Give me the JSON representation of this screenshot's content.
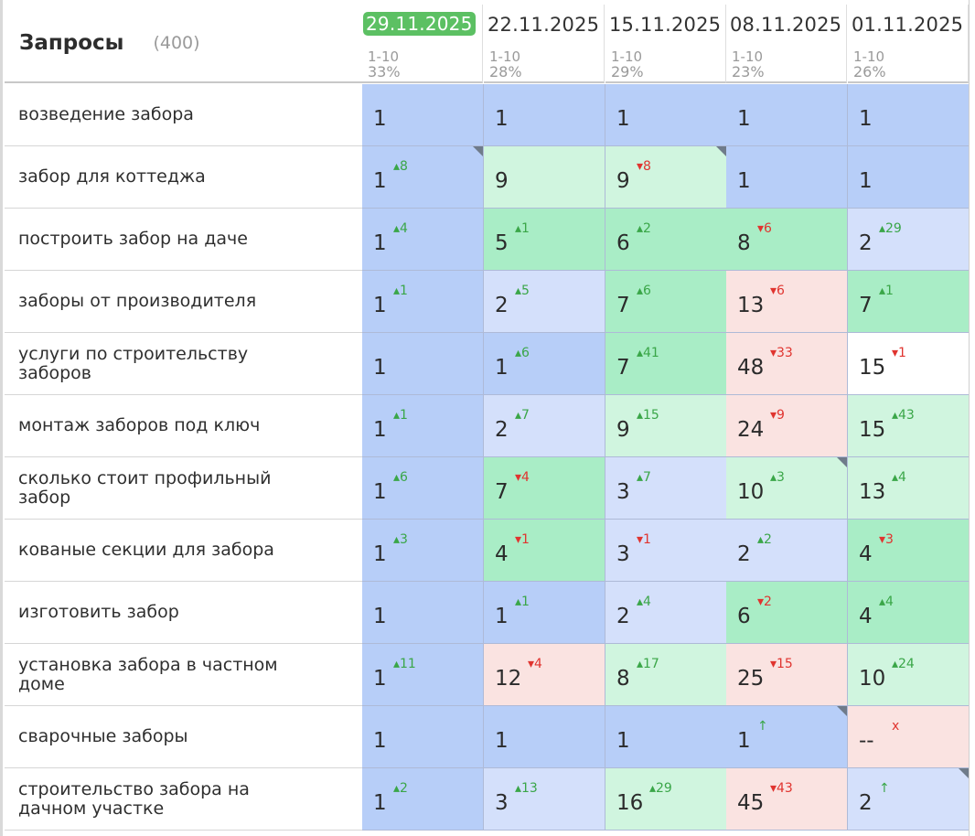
{
  "header": {
    "title": "Запросы",
    "count": "(400)"
  },
  "dates": [
    {
      "date": "29.11.2025",
      "range": "1-10",
      "pct": "33%",
      "active": true
    },
    {
      "date": "22.11.2025",
      "range": "1-10",
      "pct": "28%",
      "active": false
    },
    {
      "date": "15.11.2025",
      "range": "1-10",
      "pct": "29%",
      "active": false
    },
    {
      "date": "08.11.2025",
      "range": "1-10",
      "pct": "23%",
      "active": false
    },
    {
      "date": "01.11.2025",
      "range": "1-10",
      "pct": "26%",
      "active": false
    }
  ],
  "colors": {
    "top": "#b7cef8",
    "good": "#a9edc6",
    "ok": "#d0f5df",
    "mid": "#d4e0fb",
    "bad": "#fae3e1",
    "none": "#ffffff",
    "up": "#3aa648",
    "down": "#e0342f",
    "badge": "#5cc063"
  },
  "rows": [
    {
      "keyword": "возведение забора",
      "cells": [
        {
          "pos": "1",
          "delta": "",
          "dir": "",
          "bg": "top",
          "corner": false
        },
        {
          "pos": "1",
          "delta": "",
          "dir": "",
          "bg": "top",
          "corner": false
        },
        {
          "pos": "1",
          "delta": "",
          "dir": "",
          "bg": "top",
          "corner": false
        },
        {
          "pos": "1",
          "delta": "",
          "dir": "",
          "bg": "top",
          "corner": false
        },
        {
          "pos": "1",
          "delta": "",
          "dir": "",
          "bg": "top",
          "corner": false
        }
      ]
    },
    {
      "keyword": "забор для коттеджа",
      "cells": [
        {
          "pos": "1",
          "delta": "▴8",
          "dir": "up",
          "bg": "top",
          "corner": true
        },
        {
          "pos": "9",
          "delta": "",
          "dir": "",
          "bg": "ok",
          "corner": false
        },
        {
          "pos": "9",
          "delta": "▾8",
          "dir": "down",
          "bg": "ok",
          "corner": true
        },
        {
          "pos": "1",
          "delta": "",
          "dir": "",
          "bg": "top",
          "corner": false
        },
        {
          "pos": "1",
          "delta": "",
          "dir": "",
          "bg": "top",
          "corner": false
        }
      ]
    },
    {
      "keyword": "построить забор на даче",
      "cells": [
        {
          "pos": "1",
          "delta": "▴4",
          "dir": "up",
          "bg": "top",
          "corner": false
        },
        {
          "pos": "5",
          "delta": "▴1",
          "dir": "up",
          "bg": "good",
          "corner": false
        },
        {
          "pos": "6",
          "delta": "▴2",
          "dir": "up",
          "bg": "good",
          "corner": false
        },
        {
          "pos": "8",
          "delta": "▾6",
          "dir": "down",
          "bg": "good",
          "corner": false
        },
        {
          "pos": "2",
          "delta": "▴29",
          "dir": "up",
          "bg": "mid",
          "corner": false
        }
      ]
    },
    {
      "keyword": "заборы от производителя",
      "cells": [
        {
          "pos": "1",
          "delta": "▴1",
          "dir": "up",
          "bg": "top",
          "corner": false
        },
        {
          "pos": "2",
          "delta": "▴5",
          "dir": "up",
          "bg": "mid",
          "corner": false
        },
        {
          "pos": "7",
          "delta": "▴6",
          "dir": "up",
          "bg": "good",
          "corner": false
        },
        {
          "pos": "13",
          "delta": "▾6",
          "dir": "down",
          "bg": "bad",
          "corner": false
        },
        {
          "pos": "7",
          "delta": "▴1",
          "dir": "up",
          "bg": "good",
          "corner": false
        }
      ]
    },
    {
      "keyword": "услуги по строительству заборов",
      "cells": [
        {
          "pos": "1",
          "delta": "",
          "dir": "",
          "bg": "top",
          "corner": false
        },
        {
          "pos": "1",
          "delta": "▴6",
          "dir": "up",
          "bg": "top",
          "corner": false
        },
        {
          "pos": "7",
          "delta": "▴41",
          "dir": "up",
          "bg": "good",
          "corner": false
        },
        {
          "pos": "48",
          "delta": "▾33",
          "dir": "down",
          "bg": "bad",
          "corner": false
        },
        {
          "pos": "15",
          "delta": "▾1",
          "dir": "down",
          "bg": "none",
          "corner": false
        }
      ]
    },
    {
      "keyword": "монтаж заборов под ключ",
      "cells": [
        {
          "pos": "1",
          "delta": "▴1",
          "dir": "up",
          "bg": "top",
          "corner": false
        },
        {
          "pos": "2",
          "delta": "▴7",
          "dir": "up",
          "bg": "mid",
          "corner": false
        },
        {
          "pos": "9",
          "delta": "▴15",
          "dir": "up",
          "bg": "ok",
          "corner": false
        },
        {
          "pos": "24",
          "delta": "▾9",
          "dir": "down",
          "bg": "bad",
          "corner": false
        },
        {
          "pos": "15",
          "delta": "▴43",
          "dir": "up",
          "bg": "ok",
          "corner": false
        }
      ]
    },
    {
      "keyword": "сколько стоит профильный забор",
      "cells": [
        {
          "pos": "1",
          "delta": "▴6",
          "dir": "up",
          "bg": "top",
          "corner": false
        },
        {
          "pos": "7",
          "delta": "▾4",
          "dir": "down",
          "bg": "good",
          "corner": false
        },
        {
          "pos": "3",
          "delta": "▴7",
          "dir": "up",
          "bg": "mid",
          "corner": false
        },
        {
          "pos": "10",
          "delta": "▴3",
          "dir": "up",
          "bg": "ok",
          "corner": true
        },
        {
          "pos": "13",
          "delta": "▴4",
          "dir": "up",
          "bg": "ok",
          "corner": false
        }
      ]
    },
    {
      "keyword": "кованые секции для забора",
      "cells": [
        {
          "pos": "1",
          "delta": "▴3",
          "dir": "up",
          "bg": "top",
          "corner": false
        },
        {
          "pos": "4",
          "delta": "▾1",
          "dir": "down",
          "bg": "good",
          "corner": false
        },
        {
          "pos": "3",
          "delta": "▾1",
          "dir": "down",
          "bg": "mid",
          "corner": false
        },
        {
          "pos": "2",
          "delta": "▴2",
          "dir": "up",
          "bg": "mid",
          "corner": false
        },
        {
          "pos": "4",
          "delta": "▾3",
          "dir": "down",
          "bg": "good",
          "corner": false
        }
      ]
    },
    {
      "keyword": "изготовить забор",
      "cells": [
        {
          "pos": "1",
          "delta": "",
          "dir": "",
          "bg": "top",
          "corner": false
        },
        {
          "pos": "1",
          "delta": "▴1",
          "dir": "up",
          "bg": "top",
          "corner": false
        },
        {
          "pos": "2",
          "delta": "▴4",
          "dir": "up",
          "bg": "mid",
          "corner": false
        },
        {
          "pos": "6",
          "delta": "▾2",
          "dir": "down",
          "bg": "good",
          "corner": false
        },
        {
          "pos": "4",
          "delta": "▴4",
          "dir": "up",
          "bg": "good",
          "corner": false
        }
      ]
    },
    {
      "keyword": "установка забора в частном доме",
      "cells": [
        {
          "pos": "1",
          "delta": "▴11",
          "dir": "up",
          "bg": "top",
          "corner": false
        },
        {
          "pos": "12",
          "delta": "▾4",
          "dir": "down",
          "bg": "bad",
          "corner": false
        },
        {
          "pos": "8",
          "delta": "▴17",
          "dir": "up",
          "bg": "ok",
          "corner": false
        },
        {
          "pos": "25",
          "delta": "▾15",
          "dir": "down",
          "bg": "bad",
          "corner": false
        },
        {
          "pos": "10",
          "delta": "▴24",
          "dir": "up",
          "bg": "ok",
          "corner": false
        }
      ]
    },
    {
      "keyword": "сварочные заборы",
      "cells": [
        {
          "pos": "1",
          "delta": "",
          "dir": "",
          "bg": "top",
          "corner": false
        },
        {
          "pos": "1",
          "delta": "",
          "dir": "",
          "bg": "top",
          "corner": false
        },
        {
          "pos": "1",
          "delta": "",
          "dir": "",
          "bg": "top",
          "corner": false
        },
        {
          "pos": "1",
          "delta": "↑",
          "dir": "up",
          "bg": "top",
          "corner": true
        },
        {
          "pos": "--",
          "delta": "x",
          "dir": "x",
          "bg": "bad",
          "corner": false
        }
      ]
    },
    {
      "keyword": "строительство забора на дачном участке",
      "cells": [
        {
          "pos": "1",
          "delta": "▴2",
          "dir": "up",
          "bg": "top",
          "corner": false
        },
        {
          "pos": "3",
          "delta": "▴13",
          "dir": "up",
          "bg": "mid",
          "corner": false
        },
        {
          "pos": "16",
          "delta": "▴29",
          "dir": "up",
          "bg": "ok",
          "corner": false
        },
        {
          "pos": "45",
          "delta": "▾43",
          "dir": "down",
          "bg": "bad",
          "corner": false
        },
        {
          "pos": "2",
          "delta": "↑",
          "dir": "up",
          "bg": "mid",
          "corner": true
        }
      ]
    }
  ]
}
